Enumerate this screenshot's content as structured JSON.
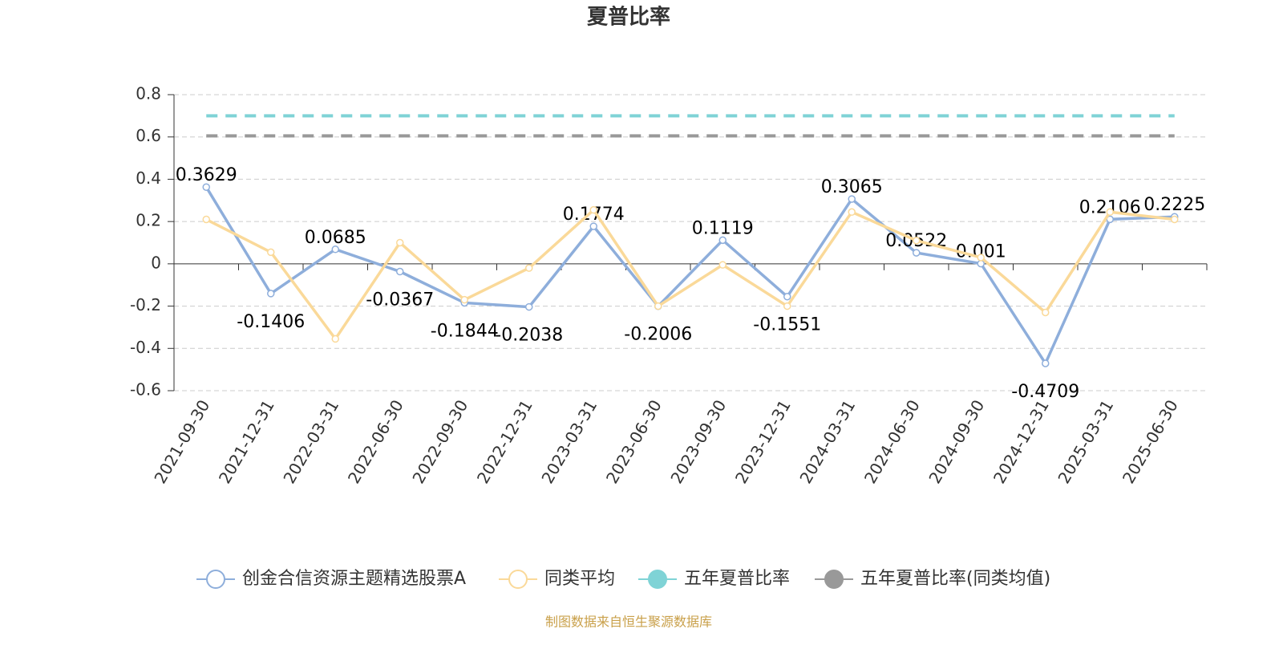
{
  "chart_data": {
    "type": "line",
    "title": "夏普比率",
    "categories": [
      "2021-09-30",
      "2021-12-31",
      "2022-03-31",
      "2022-06-30",
      "2022-09-30",
      "2022-12-31",
      "2023-03-31",
      "2023-06-30",
      "2023-09-30",
      "2023-12-31",
      "2024-03-31",
      "2024-06-30",
      "2024-09-30",
      "2024-12-31",
      "2025-03-31",
      "2025-06-30"
    ],
    "series": [
      {
        "name": "创金合信资源主题精选股票A",
        "color": "#8eaedb",
        "values": [
          0.3629,
          -0.1406,
          0.0685,
          -0.0367,
          -0.1844,
          -0.2038,
          0.1774,
          -0.2006,
          0.1119,
          -0.1551,
          0.3065,
          0.0522,
          0.001,
          -0.4709,
          0.2106,
          0.2225
        ]
      },
      {
        "name": "同类平均",
        "color": "#fad999",
        "values": [
          0.21,
          0.055,
          -0.355,
          0.1,
          -0.17,
          -0.02,
          0.255,
          -0.2,
          -0.005,
          -0.2,
          0.245,
          0.11,
          0.03,
          -0.23,
          0.245,
          0.21
        ]
      },
      {
        "name": "五年夏普比率",
        "color": "#7fd3d6",
        "values": [
          0.7,
          0.7,
          0.7,
          0.7,
          0.7,
          0.7,
          0.7,
          0.7,
          0.7,
          0.7,
          0.7,
          0.7,
          0.7,
          0.7,
          0.7,
          0.7
        ]
      },
      {
        "name": "五年夏普比率(同类均值)",
        "color": "#999999",
        "values": [
          0.605,
          0.605,
          0.605,
          0.605,
          0.605,
          0.605,
          0.605,
          0.605,
          0.605,
          0.605,
          0.605,
          0.605,
          0.605,
          0.605,
          0.605,
          0.605
        ]
      }
    ],
    "ylim": [
      -0.6,
      0.8
    ],
    "yticks": [
      -0.6,
      -0.4,
      -0.2,
      0,
      0.2,
      0.4,
      0.6,
      0.8
    ],
    "grid": true,
    "legend": "bottom"
  },
  "footer": "制图数据来自恒生聚源数据库"
}
